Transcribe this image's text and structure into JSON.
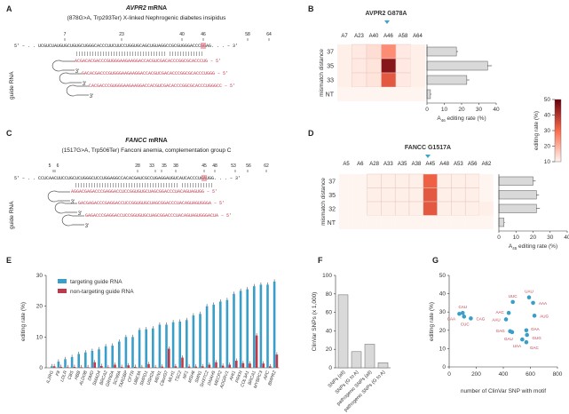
{
  "panels": {
    "a": "A",
    "b": "B",
    "c": "C",
    "d": "D",
    "e": "E",
    "f": "F",
    "g": "G"
  },
  "panel_a": {
    "gene": "AVPR2",
    "title_rest": " mRNA",
    "subtitle": "(878G>A, Trp293Ter) X-linked Nephrogenic diabetes insipidus",
    "positions": [
      "7",
      "23",
      "40",
      "46",
      "58",
      "64"
    ],
    "mrna": "5' – . . UCGUCUAUGUGCUGUGCUGGGCACCCUUCUUCCUGGUGCAGCUGUAGGCCGCGUGGGACCCGGAG. . . – 3'",
    "pairs": "|||||||||||||||||||||||||||||||||| |||||||||||||",
    "guides": [
      "ACGACACGACCCGUGGGAAGAAGGACCACGUCGACACCCGGCGCACCCUG – 5'",
      "GACACGACCCGUGGGAAGAAGGACCACGUCGACACCCGGCGCACCCUGGG – 5'",
      "CACGACCCGUGGGAAGAAGGACCACGUCGACACCCGGCGCACCCUGGGCC – 5'"
    ],
    "guide_label": "guide RNA",
    "three_prime": "3'"
  },
  "panel_c": {
    "gene": "FANCC",
    "title_rest": " mRNA",
    "subtitle": "(1517G>A, Trp506Ter) Fanconi anemia, complementation group C",
    "positions": [
      "5",
      "6",
      "28",
      "33",
      "35",
      "38",
      "45",
      "48",
      "53",
      "56",
      "62"
    ],
    "mrna": "5' – . . CCUCAACUUCCUGCUCUGGGCUCCUGGAGGCCACACGAUCGCCUGAGGAUGUCAUCACCCUGAUGG. . . – 3'",
    "pairs": "||||||||||||||||||||||||||||||||||||||| ||||||||||||",
    "guides": [
      "AGGACGAGACCCGAGGACCUCCGGUGUGCUAGCGGACCCUACAGUAGUGG – 5'",
      "GACGAGACCCGAGGACCUCCGGUGUGCUAGCGGACCCUACAGUAGUGGGA – 5'",
      "GAGACCCGAGGACCUCCGGUGUGCUAGCGGACCCUACAGUAGUGGGACUA – 5'"
    ],
    "guide_label": "guide RNA",
    "three_prime": "3'"
  },
  "chart_data": [
    {
      "id": "B",
      "type": "heatmap",
      "title": "AVPR2 G878A",
      "columns": [
        "A7",
        "A23",
        "A40",
        "A46",
        "A58",
        "A64"
      ],
      "rows": [
        "37",
        "35",
        "33",
        "NT"
      ],
      "ylabel": "mismatch distance",
      "values": [
        [
          3,
          4,
          6,
          20,
          4,
          3
        ],
        [
          3,
          4,
          5,
          45,
          4,
          3
        ],
        [
          3,
          4,
          5,
          30,
          4,
          3
        ],
        [
          2,
          2,
          2,
          2,
          2,
          2
        ]
      ],
      "bars": {
        "type": "bar",
        "values": [
          17,
          35,
          23,
          2
        ],
        "errors": [
          1,
          2.5,
          1.5,
          0.5
        ],
        "xlim": [
          0,
          40
        ],
        "ticks": [
          "0",
          "10",
          "20",
          "30",
          "40"
        ],
        "xlabel": "A46 editing rate (%)"
      }
    },
    {
      "id": "D",
      "type": "heatmap",
      "title": "FANCC G1517A",
      "columns": [
        "A5",
        "A6",
        "A28",
        "A33",
        "A35",
        "A38",
        "A45",
        "A48",
        "A53",
        "A56",
        "A62"
      ],
      "rows": [
        "37",
        "35",
        "32",
        "NT"
      ],
      "ylabel": "mismatch distance",
      "values": [
        [
          2,
          2,
          3,
          3,
          3,
          3,
          28,
          3,
          3,
          3,
          2
        ],
        [
          2,
          2,
          3,
          3,
          3,
          3,
          30,
          3,
          3,
          3,
          2
        ],
        [
          2,
          2,
          3,
          3,
          3,
          3,
          30,
          3,
          3,
          3,
          3
        ],
        [
          2,
          2,
          2,
          2,
          2,
          2,
          2,
          2,
          2,
          2,
          2
        ]
      ],
      "bars": {
        "type": "bar",
        "values": [
          20,
          22,
          22,
          3
        ],
        "errors": [
          1.5,
          1.5,
          2,
          0.5
        ],
        "xlim": [
          0,
          40
        ],
        "ticks": [
          "0",
          "10",
          "20",
          "30",
          "40"
        ],
        "xlabel": "A45 editing rate (%)"
      }
    },
    {
      "id": "colorbar",
      "type": "colorbar",
      "label": "editing rate (%)",
      "range": [
        10,
        50
      ],
      "ticks": [
        "10",
        "20",
        "30",
        "40",
        "50"
      ],
      "colors": [
        "#fff5f0",
        "#fb6a4a",
        "#67000d"
      ]
    },
    {
      "id": "E",
      "type": "bar",
      "ylabel": "editing rate (%)",
      "ylim": [
        0,
        30
      ],
      "yticks": [
        "0",
        "10",
        "20",
        "30"
      ],
      "categories": [
        "IL2RG",
        "F8",
        "LDLR",
        "CBS",
        "HBB",
        "ALDOB",
        "DMD",
        "SMAD4",
        "BRCA2",
        "GRIN2A",
        "SCN9A",
        "TARDBP",
        "CFTR",
        "UBE3A",
        "SMPD1",
        "USH2A",
        "MEN1",
        "C8orf37",
        "MLH1",
        "TSC2",
        "NF1",
        "MSH6",
        "SMN1",
        "SH3TC2",
        "DNAH5",
        "MECP2",
        "ADGRV1",
        "AHI1",
        "PRKN",
        "COL3A1",
        "BRCA1",
        "MYBPC3",
        "APC",
        "BMPR2"
      ],
      "series": [
        {
          "name": "targeting guide RNA",
          "color": "#3a9fc8",
          "values": [
            0.5,
            2,
            2.8,
            3.5,
            4.5,
            5,
            5.5,
            6,
            7,
            7.2,
            8.5,
            10,
            10,
            12.3,
            12.5,
            12.8,
            14,
            14,
            14.8,
            15,
            15.5,
            17,
            17.5,
            20,
            20.5,
            21.5,
            22,
            24,
            25,
            25.5,
            26.5,
            27,
            27,
            28
          ]
        },
        {
          "name": "non-targeting guide RNA",
          "color": "#c0394b",
          "values": [
            0.5,
            0.3,
            0.2,
            0.3,
            0.2,
            0.2,
            1.8,
            0.6,
            0.2,
            1,
            0.3,
            0.8,
            0.3,
            0.2,
            1.2,
            0.2,
            0.4,
            6.2,
            0.5,
            3.3,
            0.4,
            0.4,
            0.5,
            1,
            1.8,
            0.7,
            1,
            2.3,
            1.5,
            1.4,
            10.5,
            1.4,
            0.5,
            4.3
          ]
        }
      ]
    },
    {
      "id": "F",
      "type": "bar",
      "ylabel": "ClinVar SNPs (x 1,000)",
      "ylim": [
        0,
        100
      ],
      "yticks": [
        "0",
        "20",
        "40",
        "60",
        "80",
        "100"
      ],
      "categories": [
        "SNPs (all)",
        "SNPs (G to A)",
        "pathogenic SNPs (all)",
        "pathogenic SNPs (G to A)"
      ],
      "values": [
        79,
        17.5,
        25.5,
        5.5
      ]
    },
    {
      "id": "G",
      "type": "scatter",
      "xlabel": "number of ClinVar SNP with motif",
      "ylabel": "editing rate (%)",
      "xlim": [
        0,
        800
      ],
      "ylim": [
        0,
        50
      ],
      "xticks": [
        "0",
        "200",
        "400",
        "600",
        "800"
      ],
      "yticks": [
        "0",
        "10",
        "20",
        "30",
        "40",
        "50"
      ],
      "points": [
        {
          "label": "CAU",
          "x": 100,
          "y": 29.5
        },
        {
          "label": "CAA",
          "x": 75,
          "y": 29
        },
        {
          "label": "CUC",
          "x": 110,
          "y": 27.5
        },
        {
          "label": "CAG",
          "x": 160,
          "y": 26.5
        },
        {
          "label": "UAU",
          "x": 590,
          "y": 38
        },
        {
          "label": "UUC",
          "x": 470,
          "y": 35.5
        },
        {
          "label": "AAA",
          "x": 620,
          "y": 35
        },
        {
          "label": "AAC",
          "x": 440,
          "y": 29.5
        },
        {
          "label": "AAU",
          "x": 420,
          "y": 26
        },
        {
          "label": "AUG",
          "x": 630,
          "y": 28
        },
        {
          "label": "GAG",
          "x": 450,
          "y": 19.5
        },
        {
          "label": "GAU",
          "x": 465,
          "y": 19
        },
        {
          "label": "GAA",
          "x": 570,
          "y": 20
        },
        {
          "label": "GUG",
          "x": 575,
          "y": 17.5
        },
        {
          "label": "UAA",
          "x": 540,
          "y": 15
        },
        {
          "label": "GAC",
          "x": 570,
          "y": 13.5
        }
      ]
    }
  ]
}
